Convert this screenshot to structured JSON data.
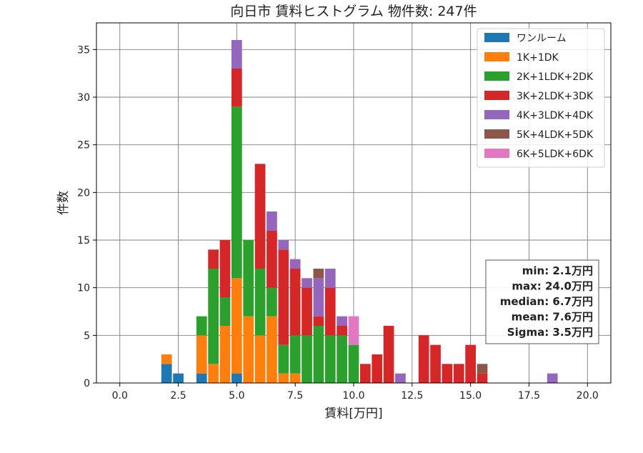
{
  "chart_data": {
    "type": "bar",
    "stacked": true,
    "title": "向日市 賃料ヒストグラム 物件数: 247件",
    "xlabel": "賃料[万円]",
    "ylabel": "件数",
    "xlim": [
      -1.0,
      21.0
    ],
    "ylim": [
      0,
      37.8
    ],
    "bin_width": 0.5,
    "x_ticks": [
      0.0,
      2.5,
      5.0,
      7.5,
      10.0,
      12.5,
      15.0,
      17.5,
      20.0
    ],
    "x_tick_labels": [
      "0.0",
      "2.5",
      "5.0",
      "7.5",
      "10.0",
      "12.5",
      "15.0",
      "17.5",
      "20.0"
    ],
    "y_ticks": [
      0,
      5,
      10,
      15,
      20,
      25,
      30,
      35
    ],
    "y_tick_labels": [
      "0",
      "5",
      "10",
      "15",
      "20",
      "25",
      "30",
      "35"
    ],
    "grid": true,
    "legend_position": "top-right",
    "x": [
      2.0,
      2.5,
      3.5,
      4.0,
      4.5,
      5.0,
      5.5,
      6.0,
      6.5,
      7.0,
      7.5,
      8.0,
      8.5,
      9.0,
      9.5,
      10.0,
      10.5,
      11.0,
      11.5,
      12.0,
      13.0,
      13.5,
      14.0,
      14.5,
      15.0,
      15.5,
      18.5
    ],
    "series": [
      {
        "name": "ワンルーム",
        "color": "#1f77b4",
        "values": [
          2,
          1,
          1,
          0,
          0,
          1,
          0,
          0,
          0,
          0,
          0,
          0,
          0,
          0,
          0,
          0,
          0,
          0,
          0,
          0,
          0,
          0,
          0,
          0,
          0,
          0,
          0
        ]
      },
      {
        "name": "1K+1DK",
        "color": "#ff7f0e",
        "values": [
          1,
          0,
          4,
          2,
          6,
          10,
          7,
          5,
          7,
          1,
          1,
          0,
          0,
          0,
          0,
          0,
          0,
          0,
          0,
          0,
          0,
          0,
          0,
          0,
          0,
          0,
          0
        ]
      },
      {
        "name": "2K+1LDK+2DK",
        "color": "#2ca02c",
        "values": [
          0,
          0,
          2,
          10,
          3,
          18,
          8,
          7,
          3,
          3,
          4,
          5,
          6,
          5,
          5,
          4,
          0,
          0,
          0,
          0,
          0,
          0,
          0,
          0,
          0,
          0,
          0
        ]
      },
      {
        "name": "3K+2LDK+3DK",
        "color": "#d62728",
        "values": [
          0,
          0,
          0,
          2,
          6,
          4,
          0,
          11,
          6,
          10,
          7,
          5,
          1,
          5,
          1,
          0,
          2,
          3,
          6,
          0,
          5,
          4,
          2,
          2,
          4,
          1,
          0
        ]
      },
      {
        "name": "4K+3LDK+4DK",
        "color": "#9467bd",
        "values": [
          0,
          0,
          0,
          0,
          0,
          3,
          0,
          0,
          2,
          1,
          1,
          1,
          4,
          2,
          1,
          0,
          0,
          0,
          0,
          1,
          0,
          0,
          0,
          0,
          0,
          0,
          1
        ]
      },
      {
        "name": "5K+4LDK+5DK",
        "color": "#8c564b",
        "values": [
          0,
          0,
          0,
          0,
          0,
          0,
          0,
          0,
          0,
          0,
          0,
          0,
          1,
          0,
          0,
          0,
          0,
          0,
          0,
          0,
          0,
          0,
          0,
          0,
          0,
          1,
          0
        ]
      },
      {
        "name": "6K+5LDK+6DK",
        "color": "#e377c2",
        "values": [
          0,
          0,
          0,
          0,
          0,
          0,
          0,
          0,
          0,
          0,
          0,
          0,
          0,
          0,
          0,
          3,
          0,
          0,
          0,
          0,
          0,
          0,
          0,
          0,
          0,
          0,
          0
        ]
      }
    ],
    "stats": [
      "min: 2.1万円",
      "max: 24.0万円",
      "median: 6.7万円",
      "mean: 7.6万円",
      "Sigma: 3.5万円"
    ]
  }
}
